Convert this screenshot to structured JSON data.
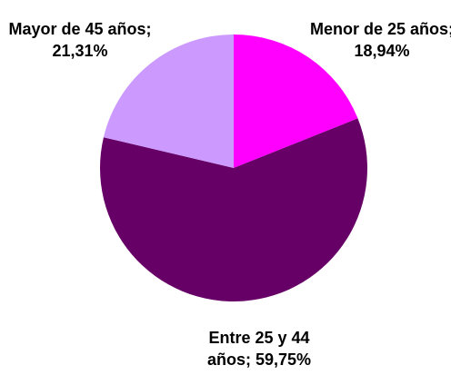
{
  "chart_data": {
    "type": "pie",
    "values": [
      18.94,
      59.75,
      21.31
    ],
    "value_labels": [
      "Menor de 25 años; 18,94%",
      "Entre 25 y 44 años; 59,75%",
      "Mayor de 45 años; 21,31%"
    ],
    "colors": [
      "#ff00ff",
      "#660066",
      "#cc99ff"
    ]
  }
}
